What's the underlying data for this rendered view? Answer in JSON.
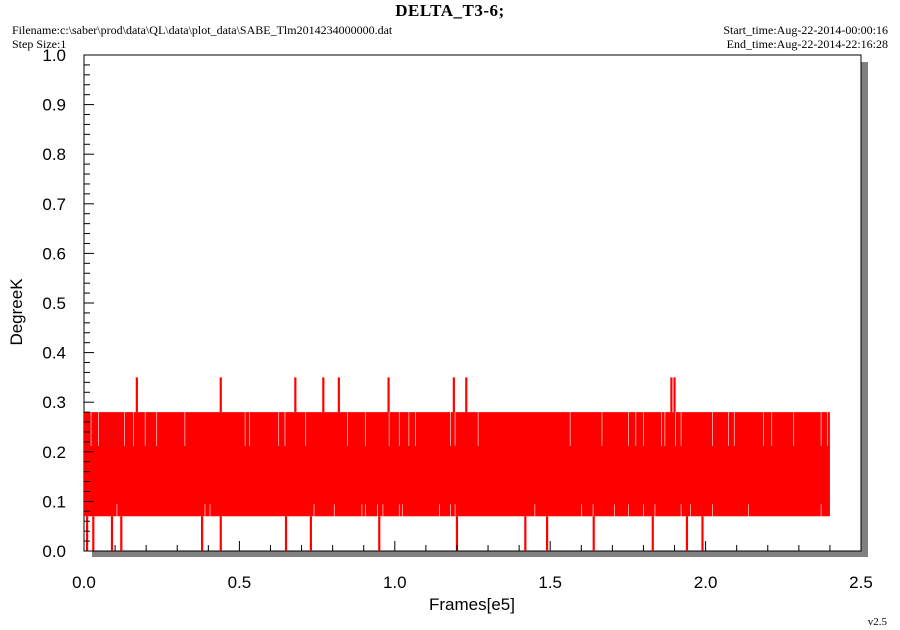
{
  "header": {
    "title": "DELTA_T3-6;",
    "filename": "Filename:c:\\saber\\prod\\data\\QL\\data\\plot_data\\SABE_Tlm2014234000000.dat",
    "step_size": "Step Size:1",
    "start_time": "Start_time:Aug-22-2014-00:00:16",
    "end_time": "End_time:Aug-22-2014-22:16:28"
  },
  "footer": {
    "version": "v2.5"
  },
  "colors": {
    "series": "#ff0000",
    "shadow": "#808080",
    "axis": "#000000"
  },
  "chart_data": {
    "type": "line",
    "title": "DELTA_T3-6;",
    "xlabel": "Frames[e5]",
    "ylabel": "DegreeK",
    "xlim": [
      0,
      2.5
    ],
    "ylim": [
      0,
      1.0
    ],
    "x_ticks": [
      "0.0",
      "0.5",
      "1.0",
      "1.5",
      "2.0",
      "2.5"
    ],
    "y_ticks": [
      "0.0",
      "0.1",
      "0.2",
      "0.3",
      "0.4",
      "0.5",
      "0.6",
      "0.7",
      "0.8",
      "0.9",
      "1.0"
    ],
    "grid": false,
    "series": [
      {
        "color": "#ff0000",
        "x_range": [
          0,
          2.4
        ],
        "core_band": [
          0.07,
          0.28
        ],
        "dense_values": [
          0.21,
          0.14,
          0.07
        ],
        "spikes_high": [
          {
            "x": 0.17,
            "y": 0.35
          },
          {
            "x": 0.44,
            "y": 0.35
          },
          {
            "x": 0.68,
            "y": 0.35
          },
          {
            "x": 0.77,
            "y": 0.35
          },
          {
            "x": 0.82,
            "y": 0.35
          },
          {
            "x": 0.98,
            "y": 0.35
          },
          {
            "x": 1.19,
            "y": 0.35
          },
          {
            "x": 1.23,
            "y": 0.35
          },
          {
            "x": 1.89,
            "y": 0.35
          },
          {
            "x": 1.9,
            "y": 0.35
          }
        ],
        "spikes_low": [
          {
            "x": 0.01,
            "y": 0.0
          },
          {
            "x": 0.03,
            "y": 0.0
          },
          {
            "x": 0.09,
            "y": 0.0
          },
          {
            "x": 0.12,
            "y": 0.0
          },
          {
            "x": 0.38,
            "y": 0.0
          },
          {
            "x": 0.44,
            "y": 0.0
          },
          {
            "x": 0.65,
            "y": 0.0
          },
          {
            "x": 0.73,
            "y": 0.0
          },
          {
            "x": 0.95,
            "y": 0.0
          },
          {
            "x": 1.2,
            "y": 0.0
          },
          {
            "x": 1.42,
            "y": 0.0
          },
          {
            "x": 1.49,
            "y": 0.0
          },
          {
            "x": 1.64,
            "y": 0.0
          },
          {
            "x": 1.83,
            "y": 0.0
          },
          {
            "x": 1.94,
            "y": 0.0
          },
          {
            "x": 1.99,
            "y": 0.0
          }
        ]
      }
    ]
  }
}
